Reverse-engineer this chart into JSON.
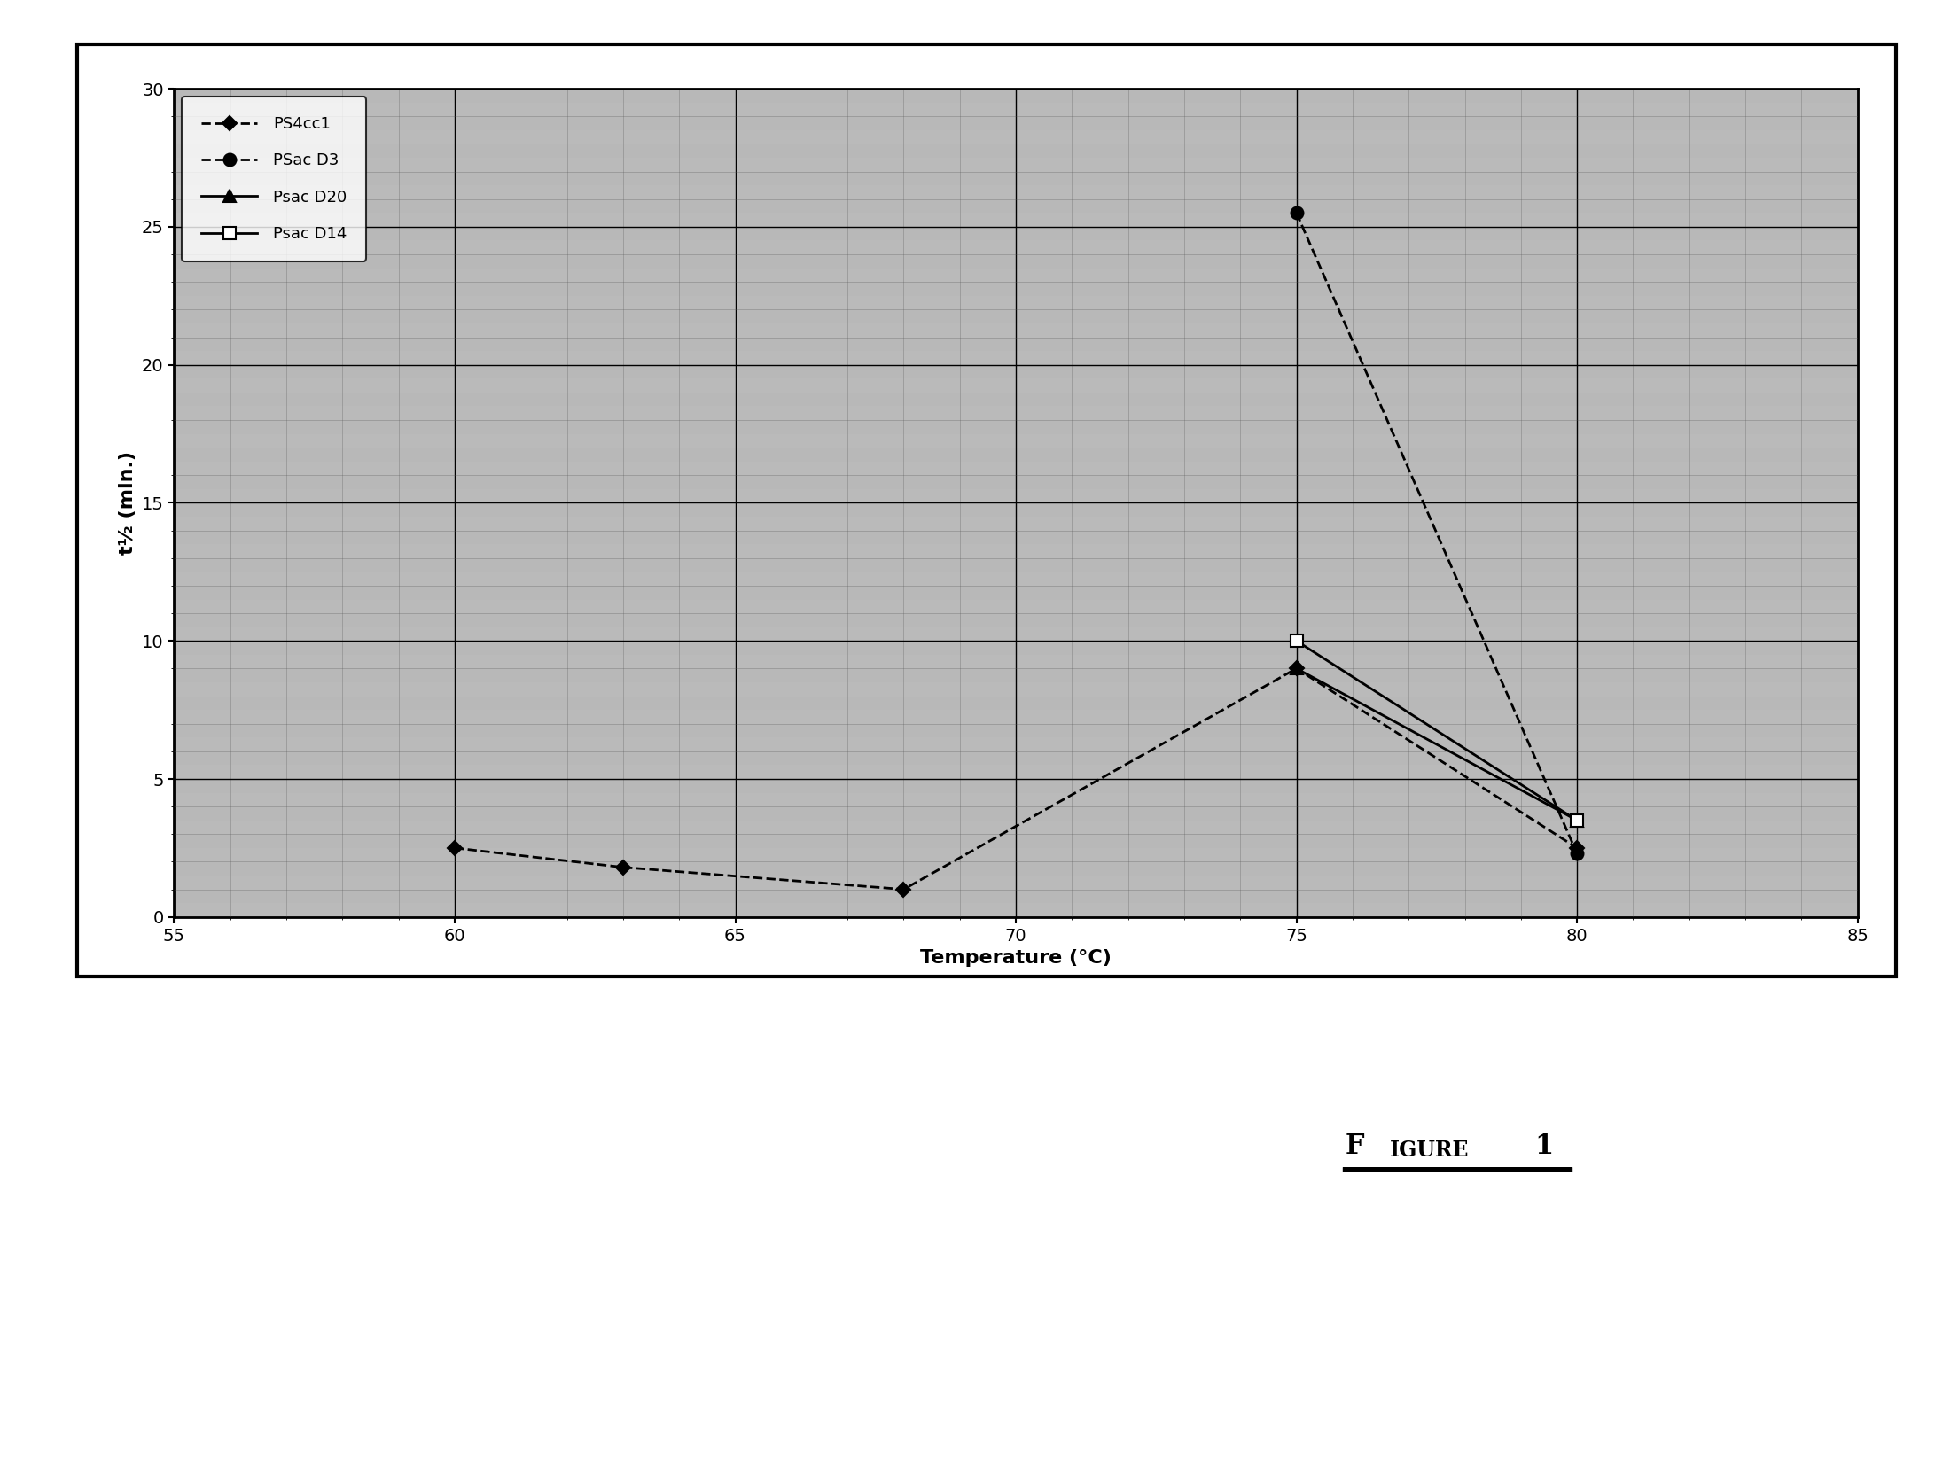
{
  "series": [
    {
      "label": "PS4cc1",
      "x": [
        60,
        63,
        68,
        75,
        80
      ],
      "y": [
        2.5,
        1.8,
        1.0,
        9.0,
        2.5
      ],
      "marker": "D",
      "markersize": 8,
      "linestyle": "--",
      "color": "#000000",
      "linewidth": 2.0,
      "markerfacecolor": "#000000"
    },
    {
      "label": "PSac D3",
      "x": [
        75,
        80
      ],
      "y": [
        25.5,
        2.3
      ],
      "marker": "o",
      "markersize": 10,
      "linestyle": "--",
      "color": "#000000",
      "linewidth": 2.0,
      "markerfacecolor": "#000000"
    },
    {
      "label": "Psac D20",
      "x": [
        75,
        80
      ],
      "y": [
        9.0,
        3.5
      ],
      "marker": "^",
      "markersize": 10,
      "linestyle": "-",
      "color": "#000000",
      "linewidth": 2.0,
      "markerfacecolor": "#000000"
    },
    {
      "label": "Psac D14",
      "x": [
        75,
        80
      ],
      "y": [
        10.0,
        3.5
      ],
      "marker": "s",
      "markersize": 10,
      "linestyle": "-",
      "color": "#000000",
      "linewidth": 2.0,
      "markerfacecolor": "#ffffff"
    }
  ],
  "xlabel": "Temperature (°C)",
  "ylabel": "t½ (mln.)",
  "xlim": [
    55,
    85
  ],
  "ylim": [
    0,
    30
  ],
  "xticks": [
    55,
    60,
    65,
    70,
    75,
    80,
    85
  ],
  "yticks": [
    0,
    5,
    10,
    15,
    20,
    25,
    30
  ],
  "background_color": "#b8b8b8",
  "figure_caption": "Figure 1",
  "axis_label_fontsize": 16,
  "tick_fontsize": 14,
  "legend_fontsize": 13
}
